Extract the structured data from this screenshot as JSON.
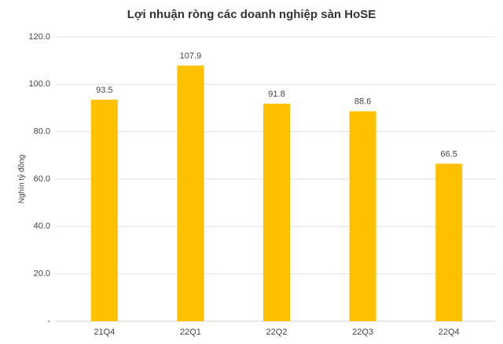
{
  "chart_data": {
    "type": "bar",
    "title": "Lợi nhuận ròng các doanh nghiệp sàn HoSE",
    "y_label": "Nghìn tỷ đồng",
    "categories": [
      "21Q4",
      "22Q1",
      "22Q2",
      "22Q3",
      "22Q4"
    ],
    "values": [
      93.5,
      107.9,
      91.8,
      88.6,
      66.5
    ],
    "color": "#ffc000",
    "ylim": [
      0,
      120
    ],
    "yticks": [
      {
        "value": 0,
        "label": "-"
      },
      {
        "value": 20,
        "label": "20.0"
      },
      {
        "value": 40,
        "label": "40.0"
      },
      {
        "value": 60,
        "label": "60.0"
      },
      {
        "value": 80,
        "label": "80.0"
      },
      {
        "value": 100,
        "label": "100.0"
      },
      {
        "value": 120,
        "label": "120.0"
      }
    ],
    "grid": true
  }
}
